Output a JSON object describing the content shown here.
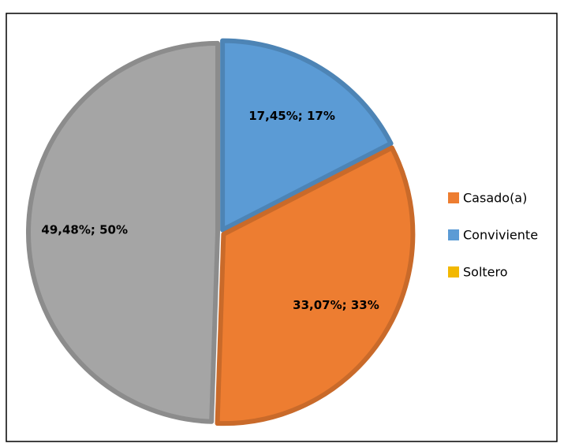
{
  "chart_data": {
    "type": "pie",
    "values": [
      17.45,
      33.07,
      49.48
    ],
    "value_labels": [
      "17,45%; 17%",
      "33,07%; 33%",
      "49,48%; 50%"
    ],
    "colors": [
      "#5b9bd5",
      "#ed7d31",
      "#a5a5a5"
    ],
    "legend": [
      {
        "name": "Casado(a)",
        "color": "#ed7d31"
      },
      {
        "name": "Conviviente",
        "color": "#5b9bd5"
      },
      {
        "name": "Soltero",
        "color": "#f2b800"
      }
    ]
  }
}
